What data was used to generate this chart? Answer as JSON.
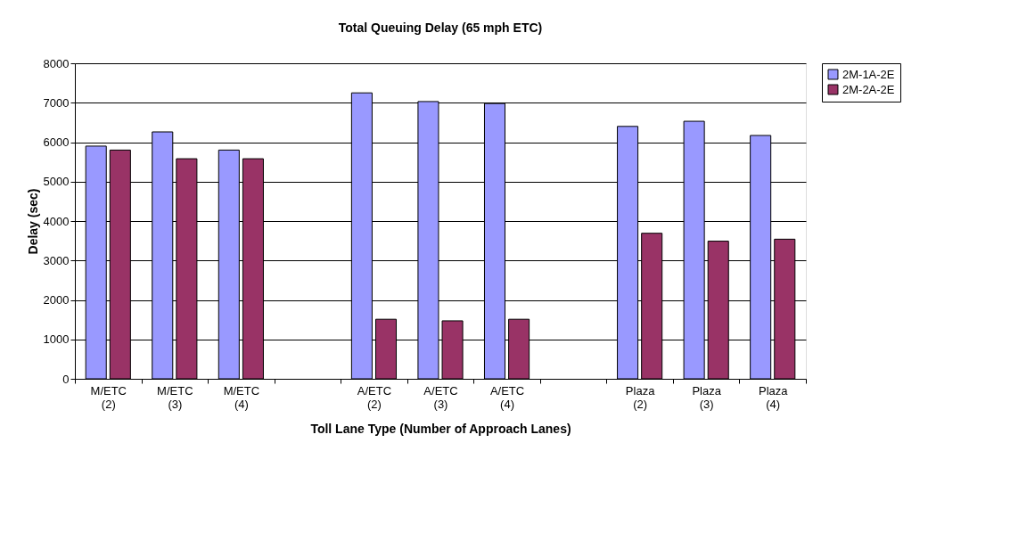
{
  "chart_data": {
    "type": "bar",
    "title": "Total Queuing Delay (65 mph ETC)",
    "xlabel": "Toll Lane Type (Number of Approach Lanes)",
    "ylabel": "Delay (sec)",
    "categories": [
      "M/ETC\n(2)",
      "M/ETC\n(3)",
      "M/ETC\n(4)",
      null,
      "A/ETC\n(2)",
      "A/ETC\n(3)",
      "A/ETC\n(4)",
      null,
      "Plaza\n(2)",
      "Plaza\n(3)",
      "Plaza\n(4)"
    ],
    "series": [
      {
        "name": "2M-1A-2E",
        "color": "#9999ff",
        "values": [
          5900,
          6260,
          5800,
          null,
          7250,
          7030,
          6980,
          null,
          6400,
          6530,
          6170
        ]
      },
      {
        "name": "2M-2A-2E",
        "color": "#993366",
        "values": [
          5800,
          5580,
          5580,
          null,
          1510,
          1470,
          1510,
          null,
          3690,
          3490,
          3540
        ]
      }
    ],
    "ylim": [
      0,
      8000
    ],
    "yticks": [
      0,
      1000,
      2000,
      3000,
      4000,
      5000,
      6000,
      7000,
      8000
    ],
    "grid": "y",
    "legend": "right"
  }
}
